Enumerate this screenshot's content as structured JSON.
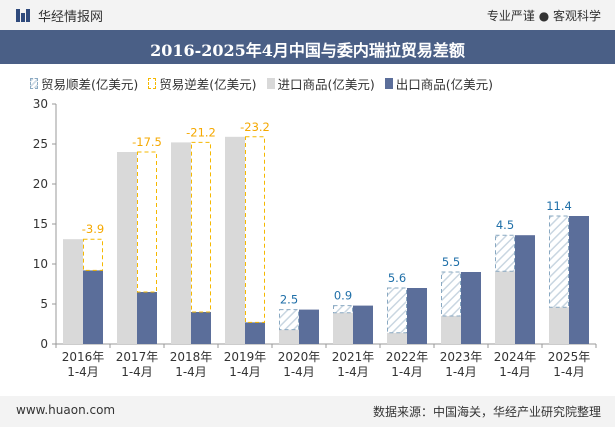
{
  "header": {
    "brand": "华经情报网",
    "tagline": "专业严谨 ● 客观科学"
  },
  "footer": {
    "site": "www.huaon.com",
    "source": "数据来源：中国海关，华经产业研究院整理"
  },
  "colors": {
    "import": "#d9d9d9",
    "export": "#5b6e9a",
    "surplus_label": "#f5a800",
    "deficit_label": "#1f6fa8"
  },
  "chart_data": {
    "type": "bar",
    "title": "2016-2025年4月中国与委内瑞拉贸易差额",
    "categories": [
      "2016年\n1-4月",
      "2017年\n1-4月",
      "2018年\n1-4月",
      "2019年\n1-4月",
      "2020年\n1-4月",
      "2021年\n1-4月",
      "2022年\n1-4月",
      "2023年\n1-4月",
      "2024年\n1-4月",
      "2025年\n1-4月"
    ],
    "series": [
      {
        "name": "贸易顺差(亿美元)",
        "values": [
          null,
          null,
          null,
          null,
          2.5,
          0.9,
          5.6,
          5.5,
          4.5,
          11.4
        ]
      },
      {
        "name": "贸易逆差(亿美元)",
        "values": [
          -3.9,
          -17.5,
          -21.2,
          -23.2,
          null,
          null,
          null,
          null,
          null,
          null
        ]
      },
      {
        "name": "进口商品(亿美元)",
        "values": [
          13.1,
          24.0,
          25.2,
          25.9,
          1.8,
          3.9,
          1.4,
          3.5,
          9.1,
          4.6
        ]
      },
      {
        "name": "出口商品(亿美元)",
        "values": [
          9.2,
          6.5,
          4.0,
          2.7,
          4.3,
          4.8,
          7.0,
          9.0,
          13.6,
          16.0
        ]
      }
    ],
    "ylim": [
      0,
      30
    ],
    "yticks": [
      0,
      5,
      10,
      15,
      20,
      25,
      30
    ],
    "legend_position": "top-left",
    "grid": false
  }
}
